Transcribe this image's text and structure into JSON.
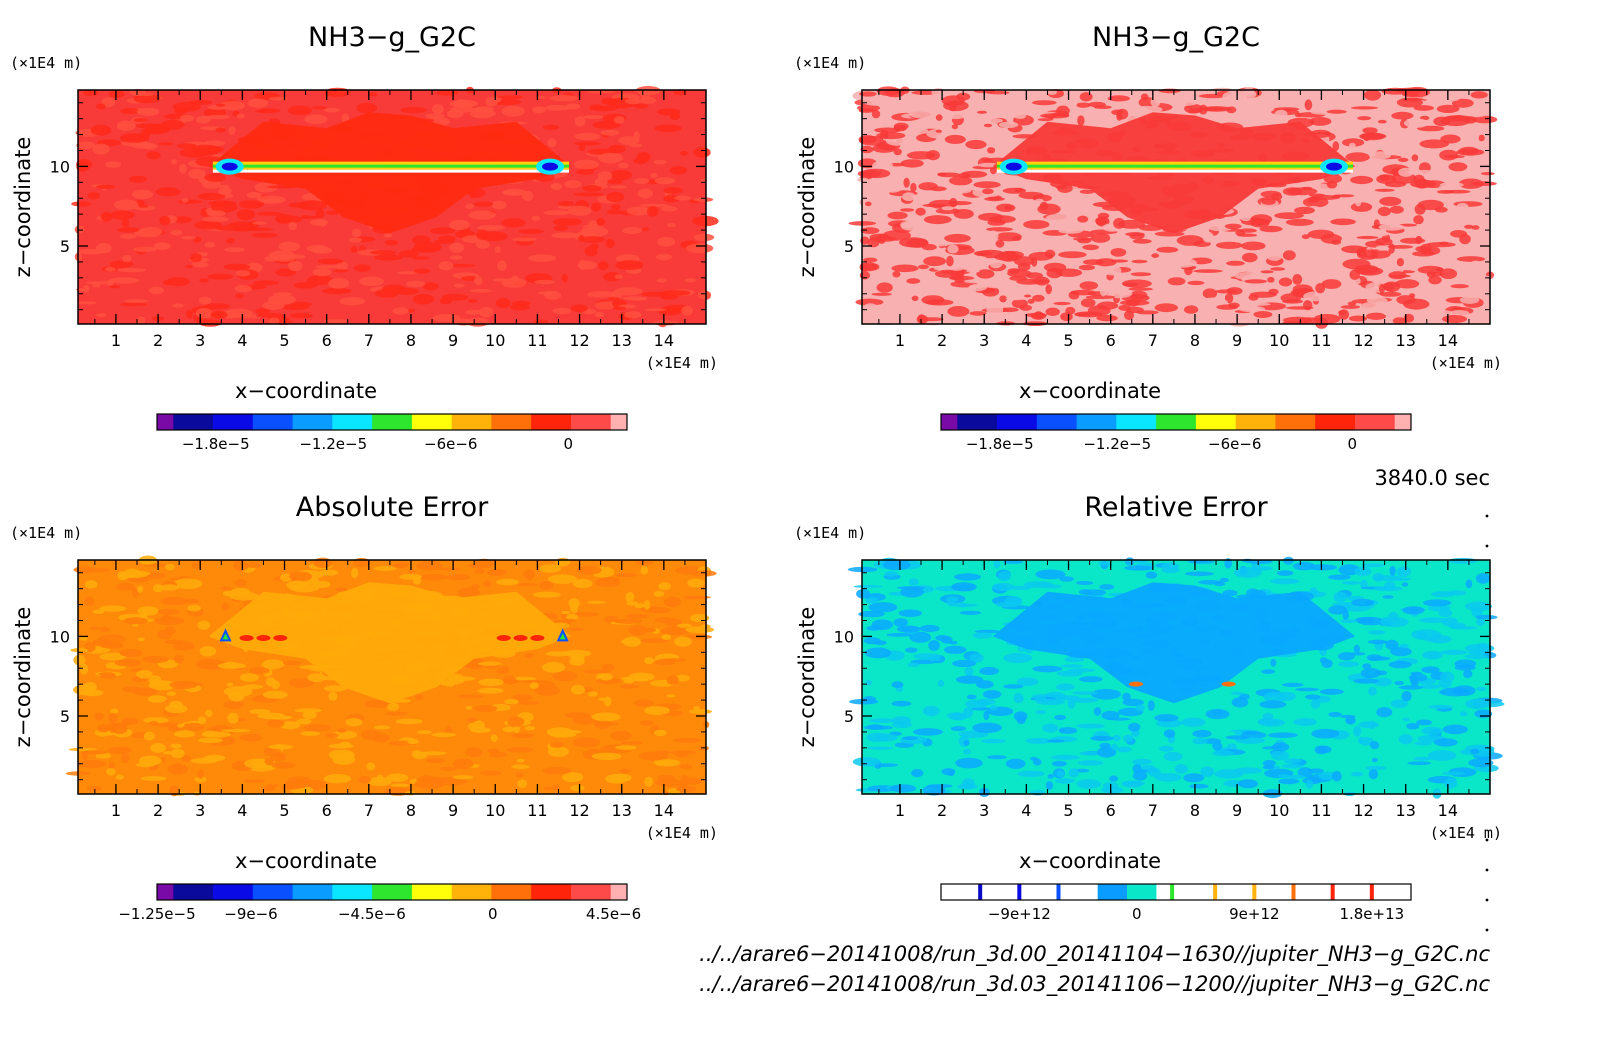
{
  "chart_data": [
    {
      "type": "heatmap",
      "title": "NH3−g_G2C",
      "xlabel": "x−coordinate",
      "ylabel": "z−coordinate",
      "x_unit": "(×1E4 m)",
      "y_unit": "(×1E4 m)",
      "xlim": [
        0.1,
        15.0
      ],
      "ylim": [
        0.1,
        14.8
      ],
      "x_ticks": [
        "1",
        "2",
        "3",
        "4",
        "5",
        "6",
        "7",
        "8",
        "9",
        "10",
        "11",
        "12",
        "13",
        "14"
      ],
      "y_ticks": [
        "5",
        "10"
      ],
      "background_color": "#f83a38",
      "colorbar": {
        "colors": [
          "#7a0aa8",
          "#0a0a9c",
          "#0a0ae6",
          "#0a50ff",
          "#0a9cff",
          "#0ae6ff",
          "#2ee62e",
          "#ffff0a",
          "#ffb20a",
          "#ff700a",
          "#ff240a",
          "#ff4a4a",
          "#ffb0b0"
        ],
        "tick_labels": [
          "−1.8e−5",
          "−1.2e−5",
          "−6e−6",
          "0"
        ],
        "tick_values": [
          -1.8e-05,
          -1.2e-05,
          -6e-06,
          0
        ],
        "range": [
          -2.1e-05,
          3e-06
        ]
      }
    },
    {
      "type": "heatmap",
      "title": "NH3−g_G2C",
      "xlabel": "x−coordinate",
      "ylabel": "z−coordinate",
      "x_unit": "(×1E4 m)",
      "y_unit": "(×1E4 m)",
      "xlim": [
        0.1,
        15.0
      ],
      "ylim": [
        0.1,
        14.8
      ],
      "x_ticks": [
        "1",
        "2",
        "3",
        "4",
        "5",
        "6",
        "7",
        "8",
        "9",
        "10",
        "11",
        "12",
        "13",
        "14"
      ],
      "y_ticks": [
        "5",
        "10"
      ],
      "background_color": "#f8b0b0",
      "colorbar": {
        "colors": [
          "#7a0aa8",
          "#0a0a9c",
          "#0a0ae6",
          "#0a50ff",
          "#0a9cff",
          "#0ae6ff",
          "#2ee62e",
          "#ffff0a",
          "#ffb20a",
          "#ff700a",
          "#ff240a",
          "#ff4a4a",
          "#ffb0b0"
        ],
        "tick_labels": [
          "−1.8e−5",
          "−1.2e−5",
          "−6e−6",
          "0"
        ],
        "tick_values": [
          -1.8e-05,
          -1.2e-05,
          -6e-06,
          0
        ],
        "range": [
          -2.1e-05,
          3e-06
        ]
      }
    },
    {
      "type": "heatmap",
      "title": "Absolute Error",
      "xlabel": "x−coordinate",
      "ylabel": "z−coordinate",
      "x_unit": "(×1E4 m)",
      "y_unit": "(×1E4 m)",
      "xlim": [
        0.1,
        15.0
      ],
      "ylim": [
        0.1,
        14.8
      ],
      "x_ticks": [
        "1",
        "2",
        "3",
        "4",
        "5",
        "6",
        "7",
        "8",
        "9",
        "10",
        "11",
        "12",
        "13",
        "14"
      ],
      "y_ticks": [
        "5",
        "10"
      ],
      "background_color": "#ff8a0a",
      "colorbar": {
        "colors": [
          "#7a0aa8",
          "#0a0a9c",
          "#0a0ae6",
          "#0a50ff",
          "#0a9cff",
          "#0ae6ff",
          "#2ee62e",
          "#ffff0a",
          "#ffb20a",
          "#ff700a",
          "#ff240a",
          "#ff4a4a",
          "#ffb0b0"
        ],
        "tick_labels": [
          "−1.25e−5",
          "−9e−6",
          "−4.5e−6",
          "0",
          "4.5e−6"
        ],
        "tick_values": [
          -1.25e-05,
          -9e-06,
          -4.5e-06,
          0,
          4.5e-06
        ],
        "range": [
          -1.25e-05,
          5e-06
        ]
      }
    },
    {
      "type": "heatmap",
      "title": "Relative Error",
      "xlabel": "x−coordinate",
      "ylabel": "z−coordinate",
      "x_unit": "(×1E4 m)",
      "y_unit": "(×1E4 m)",
      "xlim": [
        0.1,
        15.0
      ],
      "ylim": [
        0.1,
        14.8
      ],
      "x_ticks": [
        "1",
        "2",
        "3",
        "4",
        "5",
        "6",
        "7",
        "8",
        "9",
        "10",
        "11",
        "12",
        "13",
        "14"
      ],
      "y_ticks": [
        "5",
        "10"
      ],
      "background_color": "#0ae6c8",
      "colorbar": {
        "colors": [
          "#ffffff",
          "#0a0ac8",
          "#ffffff",
          "#0a50ff",
          "#ffffff",
          "#0a9cff",
          "#0ae6c8",
          "#ffffff",
          "#ffb20a",
          "#ffffff",
          "#ff700a",
          "#ffffff",
          "#ff240a",
          "#ffffff"
        ],
        "tick_labels": [
          "−9e+12",
          "0",
          "9e+12",
          "1.8e+13"
        ],
        "tick_values": [
          -9000000000000.0,
          0,
          9000000000000.0,
          18000000000000.0
        ],
        "range": [
          -15000000000000.0,
          21000000000000.0
        ]
      }
    }
  ],
  "time_label": "3840.0 sec",
  "file_paths": [
    "../../arare6−20141008/run_3d.00_20141104−1630//jupiter_NH3−g_G2C.nc",
    "../../arare6−20141008/run_3d.03_20141106−1200//jupiter_NH3−g_G2C.nc"
  ]
}
